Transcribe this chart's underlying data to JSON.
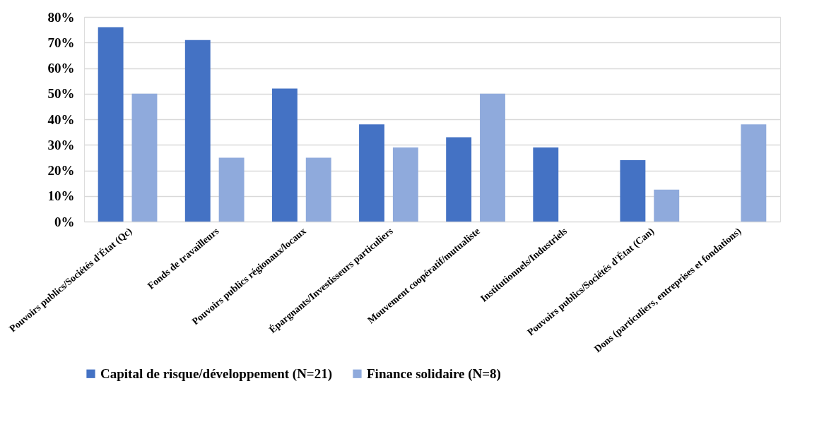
{
  "chart_data": {
    "type": "bar",
    "categories": [
      "Pouvoirs publics/Sociétés d'État (Qc)",
      "Fonds de travailleurs",
      "Pouvoirs publics régionaux/locaux",
      "Épargnants/Investisseurs particuliers",
      "Mouvement coopératif/mutualiste",
      "Institutionnels/Industriels",
      "Pouvoirs publics/Sociétés d'État (Can)",
      "Dons (particuliers, entreprises et fondations)"
    ],
    "series": [
      {
        "name": "Capital de risque/développement (N=21)",
        "color": "#4472c4",
        "values": [
          76,
          71,
          52,
          38,
          33,
          29,
          24,
          null
        ]
      },
      {
        "name": "Finance solidaire (N=8)",
        "color": "#8faadc",
        "values": [
          50,
          25,
          25,
          29,
          50,
          null,
          12.5,
          38
        ]
      }
    ],
    "ylim": [
      0,
      80
    ],
    "yticks": [
      {
        "value": 0,
        "label": "0%"
      },
      {
        "value": 10,
        "label": "10%"
      },
      {
        "value": 20,
        "label": "20%"
      },
      {
        "value": 30,
        "label": "30%"
      },
      {
        "value": 40,
        "label": "40%"
      },
      {
        "value": 50,
        "label": "50%"
      },
      {
        "value": 60,
        "label": "60%"
      },
      {
        "value": 70,
        "label": "70%"
      },
      {
        "value": 80,
        "label": "80%"
      }
    ],
    "grid": "y",
    "legend": "bottom"
  }
}
